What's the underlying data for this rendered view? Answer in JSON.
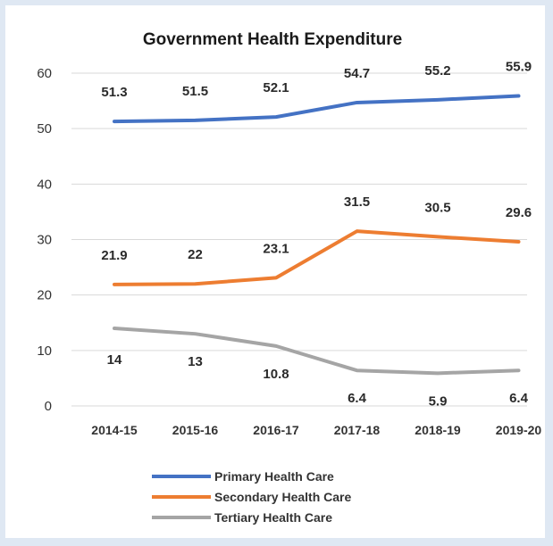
{
  "chart_data": {
    "type": "line",
    "title": "Government Health Expenditure",
    "xlabel": "",
    "ylabel": "",
    "categories": [
      "2014-15",
      "2015-16",
      "2016-17",
      "2017-18",
      "2018-19",
      "2019-20"
    ],
    "ylim": [
      0,
      60
    ],
    "yticks": [
      0,
      10,
      20,
      30,
      40,
      50,
      60
    ],
    "grid": true,
    "legend_position": "bottom",
    "series": [
      {
        "name": "Primary Health Care",
        "color": "#4472c4",
        "values": [
          51.3,
          51.5,
          52.1,
          54.7,
          55.2,
          55.9
        ],
        "labels": [
          "51.3",
          "51.5",
          "52.1",
          "54.7",
          "55.2",
          "55.9"
        ]
      },
      {
        "name": "Secondary Health Care",
        "color": "#ed7d31",
        "values": [
          21.9,
          22,
          23.1,
          31.5,
          30.5,
          29.6
        ],
        "labels": [
          "21.9",
          "22",
          "23.1",
          "31.5",
          "30.5",
          "29.6"
        ]
      },
      {
        "name": "Tertiary Health Care",
        "color": "#a5a5a5",
        "values": [
          14,
          13,
          10.8,
          6.4,
          5.9,
          6.4
        ],
        "labels": [
          "14",
          "13",
          "10.8",
          "6.4",
          "5.9",
          "6.4"
        ]
      }
    ]
  }
}
